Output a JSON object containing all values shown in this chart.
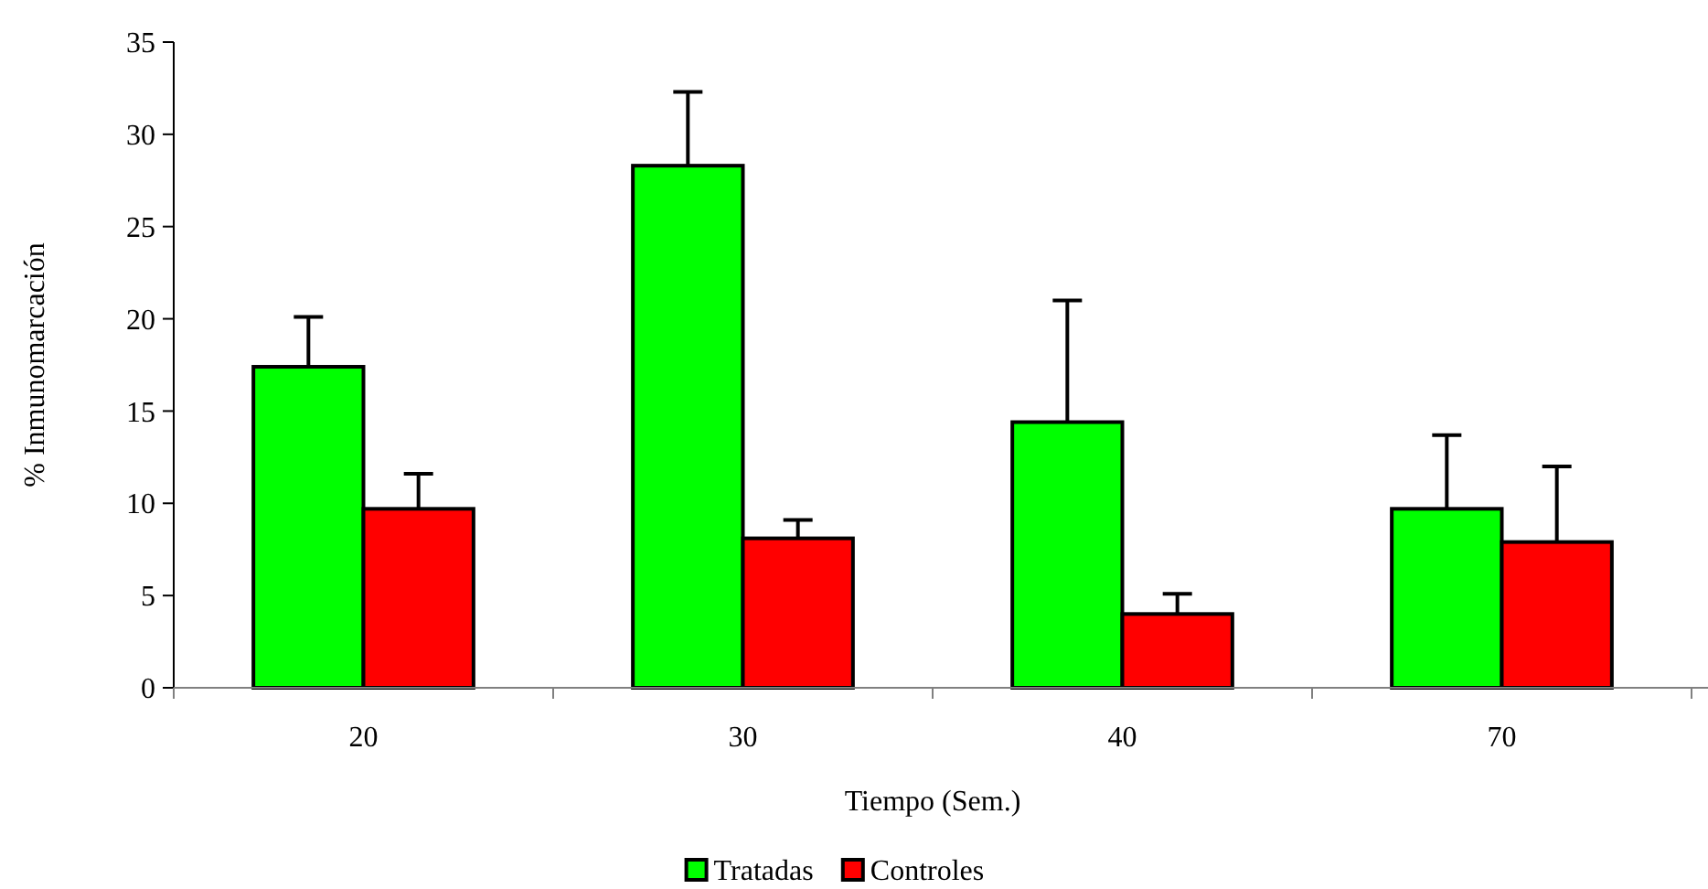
{
  "chart_data": {
    "type": "bar",
    "xlabel": "Tiempo (Sem.)",
    "ylabel": "% Inmunomarcación",
    "categories": [
      "20",
      "30",
      "40",
      "70"
    ],
    "series": [
      {
        "name": "Tratadas",
        "color": "#00ff00",
        "values": [
          17.4,
          28.3,
          14.4,
          9.7
        ],
        "errors": [
          [
            17.4,
            20.1
          ],
          [
            28.3,
            32.3
          ],
          [
            14.4,
            21.0
          ],
          [
            9.7,
            13.7
          ]
        ]
      },
      {
        "name": "Controles",
        "color": "#ff0000",
        "values": [
          9.7,
          8.1,
          4.0,
          7.9
        ],
        "errors": [
          [
            9.7,
            11.6
          ],
          [
            8.1,
            9.1
          ],
          [
            4.0,
            5.1
          ],
          [
            7.9,
            12.0
          ]
        ]
      }
    ],
    "ylim": [
      0,
      35
    ],
    "yticks": [
      0,
      5,
      10,
      15,
      20,
      25,
      30,
      35
    ],
    "grid": false,
    "legend": "bottom"
  }
}
